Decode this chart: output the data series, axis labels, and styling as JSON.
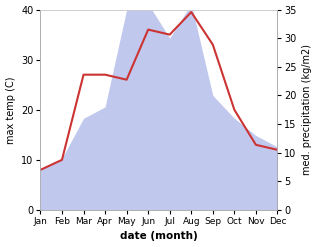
{
  "months": [
    "Jan",
    "Feb",
    "Mar",
    "Apr",
    "May",
    "Jun",
    "Jul",
    "Aug",
    "Sep",
    "Oct",
    "Nov",
    "Dec"
  ],
  "temperature": [
    8.0,
    10.0,
    27.0,
    27.0,
    26.0,
    36.0,
    35.0,
    39.5,
    33.0,
    20.0,
    13.0,
    12.0
  ],
  "precipitation": [
    7.0,
    9.0,
    16.0,
    18.0,
    35.0,
    36.0,
    30.0,
    36.0,
    20.0,
    16.0,
    13.0,
    11.0
  ],
  "temp_color": "#cc3333",
  "precip_fill_color": "#c0c8ee",
  "temp_ylim": [
    0,
    40
  ],
  "precip_ylim": [
    0,
    35
  ],
  "temp_yticks": [
    0,
    10,
    20,
    30,
    40
  ],
  "precip_yticks": [
    0,
    5,
    10,
    15,
    20,
    25,
    30,
    35
  ],
  "xlabel": "date (month)",
  "ylabel_left": "max temp (C)",
  "ylabel_right": "med. precipitation (kg/m2)",
  "bg_color": "#ffffff",
  "fig_width": 3.18,
  "fig_height": 2.47,
  "dpi": 100
}
